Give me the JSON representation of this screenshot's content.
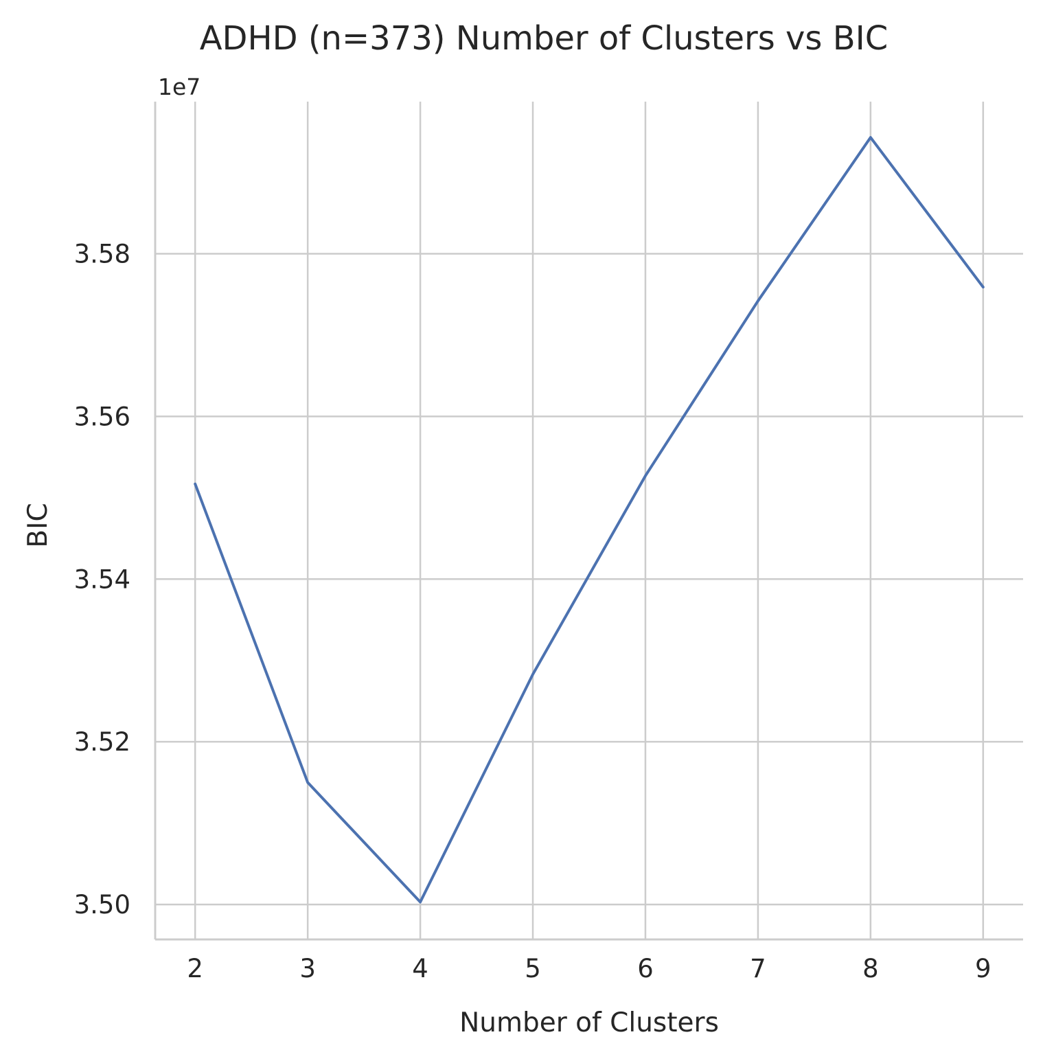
{
  "chart_data": {
    "type": "line",
    "title": "ADHD (n=373) Number of Clusters vs BIC",
    "xlabel": "Number of Clusters",
    "ylabel": "BIC",
    "y_offset_label": "1e7",
    "x": [
      2,
      3,
      4,
      5,
      6,
      7,
      8,
      9
    ],
    "series": [
      {
        "values": [
          3.5517,
          3.515,
          3.5003,
          3.5283,
          3.5527,
          3.5742,
          3.5943,
          3.5759
        ]
      }
    ],
    "xticks": [
      "2",
      "3",
      "4",
      "5",
      "6",
      "7",
      "8",
      "9"
    ],
    "yticks": [
      3.5,
      3.52,
      3.54,
      3.56,
      3.58
    ],
    "ytick_labels": [
      "3.50",
      "3.52",
      "3.54",
      "3.56",
      "3.58"
    ],
    "xlim": [
      1.645,
      9.355
    ],
    "ylim": [
      3.4957,
      3.5987
    ],
    "grid": true,
    "colors": {
      "line": "#4c72b0",
      "grid": "#cccccc",
      "spine": "#cccccc",
      "text": "#262626"
    }
  }
}
